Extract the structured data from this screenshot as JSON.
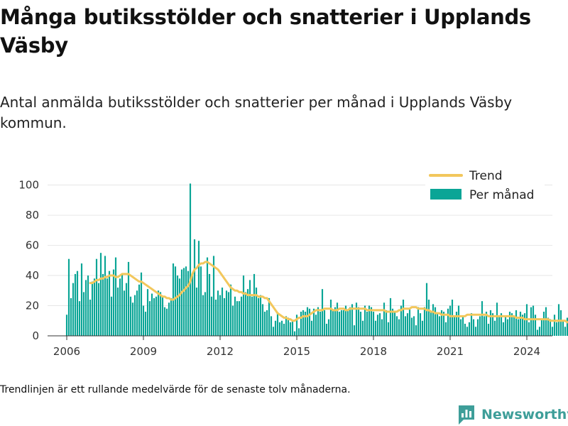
{
  "title": "Många butiksstölder och snatterier i Upplands Väsby",
  "subtitle": "Antal anmälda butiksstölder och snatterier per månad i Upplands Väsby kommun.",
  "footnote": "Trendlinjen är ett rullande medelvärde för de senaste tolv månaderna.",
  "brand": {
    "name": "Newsworthy",
    "icon": "bar-chart-logo-icon"
  },
  "colors": {
    "bars": "#0aa596",
    "trend": "#f2c75c",
    "grid": "#e6e6e6",
    "axis": "#333333",
    "brand": "#3e9e99"
  },
  "chart_data": {
    "type": "bar",
    "x_start": "2006-01",
    "xlim": [
      "2005-04",
      "2025-01"
    ],
    "ylim": [
      0,
      105
    ],
    "y_ticks": [
      0,
      20,
      40,
      60,
      80,
      100
    ],
    "x_ticks": [
      {
        "date": "2006-01",
        "label": "2006"
      },
      {
        "date": "2009-01",
        "label": "2009"
      },
      {
        "date": "2012-01",
        "label": "2012"
      },
      {
        "date": "2015-01",
        "label": "2015"
      },
      {
        "date": "2018-01",
        "label": "2018"
      },
      {
        "date": "2021-01",
        "label": "2021"
      },
      {
        "date": "2024-01",
        "label": "2024"
      }
    ],
    "grid": true,
    "legend_position": "top-right",
    "series": [
      {
        "name": "Per månad",
        "kind": "bar",
        "color": "#0aa596",
        "values": [
          14,
          51,
          25,
          35,
          41,
          43,
          23,
          48,
          29,
          37,
          40,
          24,
          36,
          38,
          51,
          35,
          55,
          41,
          53,
          38,
          43,
          26,
          44,
          52,
          32,
          38,
          41,
          30,
          35,
          49,
          26,
          22,
          27,
          30,
          34,
          42,
          20,
          16,
          31,
          23,
          28,
          25,
          26,
          30,
          29,
          26,
          19,
          18,
          22,
          25,
          48,
          46,
          40,
          38,
          44,
          45,
          46,
          43,
          101,
          40,
          64,
          32,
          63,
          46,
          27,
          29,
          52,
          41,
          26,
          53,
          24,
          30,
          27,
          32,
          25,
          30,
          29,
          34,
          20,
          26,
          23,
          23,
          26,
          40,
          29,
          31,
          37,
          26,
          41,
          32,
          25,
          27,
          21,
          16,
          17,
          25,
          13,
          6,
          10,
          15,
          9,
          10,
          8,
          13,
          12,
          9,
          10,
          3,
          14,
          5,
          16,
          17,
          16,
          19,
          18,
          10,
          18,
          14,
          19,
          16,
          31,
          17,
          8,
          11,
          24,
          17,
          19,
          22,
          16,
          17,
          17,
          20,
          17,
          19,
          21,
          7,
          22,
          19,
          16,
          10,
          20,
          16,
          20,
          19,
          16,
          10,
          14,
          15,
          11,
          22,
          17,
          9,
          25,
          18,
          16,
          13,
          11,
          20,
          24,
          13,
          15,
          18,
          12,
          13,
          7,
          19,
          15,
          10,
          19,
          35,
          24,
          16,
          21,
          19,
          15,
          13,
          17,
          16,
          9,
          18,
          20,
          24,
          13,
          16,
          20,
          11,
          13,
          8,
          6,
          9,
          15,
          11,
          6,
          11,
          13,
          23,
          13,
          16,
          8,
          17,
          15,
          10,
          22,
          13,
          15,
          9,
          13,
          11,
          16,
          15,
          13,
          17,
          11,
          16,
          14,
          15,
          21,
          9,
          19,
          20,
          14,
          4,
          6,
          11,
          16,
          19,
          12,
          11,
          6,
          14,
          9,
          21,
          17,
          10,
          6,
          12,
          13,
          20,
          10,
          4,
          5,
          10,
          6,
          11,
          13,
          12,
          6,
          7,
          9,
          10,
          7,
          11,
          12,
          10,
          11,
          5,
          4,
          13,
          8,
          11,
          9,
          27
        ]
      },
      {
        "name": "Trend",
        "kind": "line",
        "color": "#f2c75c",
        "start": "2006-12",
        "values": [
          35,
          35,
          36,
          37,
          37,
          38,
          38,
          39,
          39,
          40,
          40,
          40,
          39,
          39,
          40,
          41,
          41,
          41,
          41,
          40,
          39,
          38,
          37,
          36,
          36,
          35,
          34,
          33,
          32,
          31,
          30,
          29,
          28,
          27,
          26,
          26,
          25,
          25,
          24,
          24,
          25,
          26,
          27,
          29,
          30,
          32,
          33,
          36,
          41,
          44,
          45,
          47,
          48,
          48,
          49,
          49,
          48,
          47,
          46,
          45,
          44,
          42,
          40,
          38,
          36,
          34,
          32,
          31,
          30,
          30,
          29,
          29,
          28,
          28,
          27,
          27,
          27,
          27,
          27,
          26,
          26,
          26,
          25,
          25,
          23,
          21,
          19,
          17,
          15,
          14,
          13,
          12,
          12,
          11,
          11,
          10,
          10,
          11,
          12,
          12,
          13,
          13,
          13,
          14,
          15,
          16,
          17,
          17,
          17,
          17,
          18,
          18,
          18,
          18,
          17,
          17,
          17,
          18,
          18,
          18,
          17,
          17,
          18,
          18,
          18,
          18,
          18,
          18,
          18,
          18,
          17,
          17,
          17,
          17,
          17,
          17,
          17,
          17,
          17,
          16,
          16,
          16,
          16,
          16,
          16,
          17,
          17,
          18,
          18,
          18,
          18,
          19,
          19,
          19,
          18,
          18,
          18,
          18,
          17,
          17,
          16,
          16,
          15,
          15,
          15,
          14,
          14,
          14,
          14,
          13,
          13,
          13,
          13,
          13,
          13,
          13,
          13,
          14,
          14,
          14,
          14,
          14,
          14,
          14,
          14,
          14,
          14,
          13,
          13,
          13,
          13,
          13,
          13,
          13,
          13,
          13,
          13,
          13,
          13,
          13,
          12,
          12,
          12,
          12,
          11,
          11,
          11,
          11,
          11,
          11,
          11,
          11,
          11,
          11,
          11,
          11,
          10,
          10,
          10,
          10,
          10,
          10,
          10,
          10,
          9,
          9,
          9,
          10,
          10,
          10,
          11
        ]
      }
    ]
  }
}
